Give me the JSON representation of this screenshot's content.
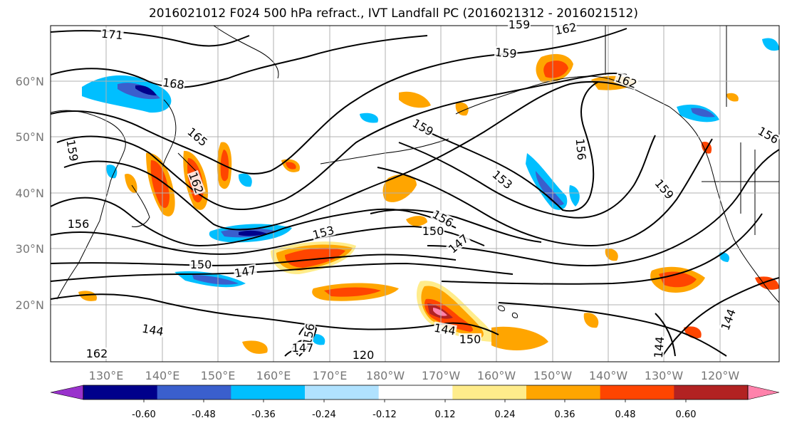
{
  "title": "2016021012 F024 500 hPa refract., IVT Landfall PC (2016021312 - 2016021512)",
  "map": {
    "lat_labels": [
      "60°N",
      "50°N",
      "40°N",
      "30°N",
      "20°N"
    ],
    "lon_labels": [
      "130°E",
      "140°E",
      "150°E",
      "160°E",
      "170°E",
      "180°W",
      "170°W",
      "160°W",
      "150°W",
      "140°W",
      "130°W",
      "120°W"
    ],
    "contour_labels": [
      "171",
      "168",
      "165",
      "162",
      "159",
      "156",
      "153",
      "150",
      "147",
      "144",
      "162",
      "159",
      "162",
      "159",
      "156",
      "153",
      "159",
      "156",
      "150",
      "147",
      "144",
      "144",
      "144",
      "150",
      "120",
      "156",
      "147",
      "162",
      "159",
      "156"
    ]
  },
  "colorbar": {
    "ticks": [
      "-0.60",
      "-0.48",
      "-0.36",
      "-0.24",
      "-0.12",
      "0.12",
      "0.24",
      "0.36",
      "0.48",
      "0.60"
    ],
    "colors": [
      "#9932cc",
      "#00008b",
      "#3a5fcd",
      "#00bfff",
      "#b0e2ff",
      "#ffffff",
      "#ffec8b",
      "#ffa500",
      "#ff4500",
      "#b22222",
      "#ff82ab"
    ]
  }
}
